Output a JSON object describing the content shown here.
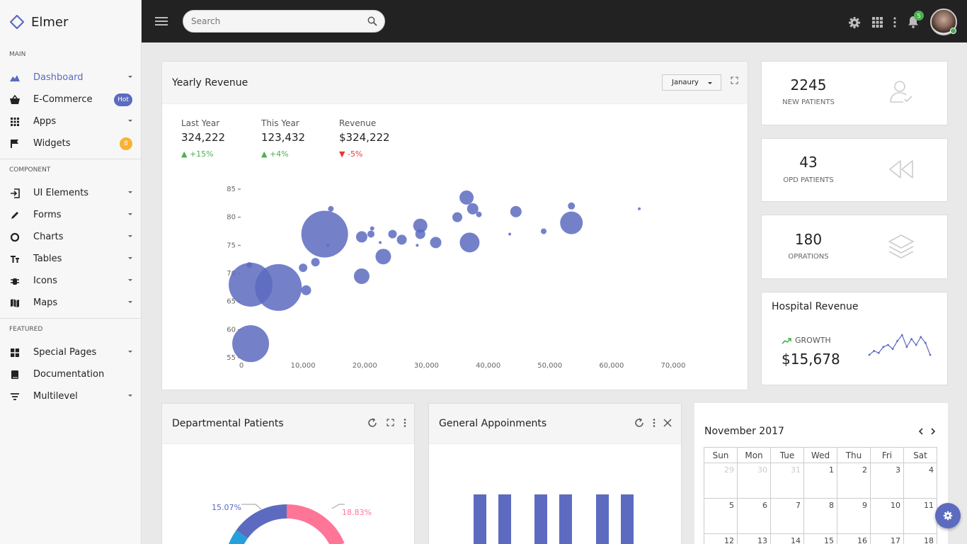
{
  "app": {
    "name": "Elmer"
  },
  "sidebar": {
    "main_title": "MAIN",
    "main": [
      {
        "label": "Dashboard"
      },
      {
        "label": "E-Commerce",
        "badge": "Hot"
      },
      {
        "label": "Apps"
      },
      {
        "label": "Widgets",
        "badge": "8"
      }
    ],
    "component_title": "COMPONENT",
    "component": [
      {
        "label": "UI Elements"
      },
      {
        "label": "Forms"
      },
      {
        "label": "Charts"
      },
      {
        "label": "Tables"
      },
      {
        "label": "Icons"
      },
      {
        "label": "Maps"
      }
    ],
    "featured_title": "FEATURED",
    "featured": [
      {
        "label": "Special Pages"
      },
      {
        "label": "Documentation"
      },
      {
        "label": "Multilevel"
      }
    ]
  },
  "topbar": {
    "search_placeholder": "Search",
    "notification_count": "5"
  },
  "revenue": {
    "title": "Yearly Revenue",
    "month": "Janaury",
    "stats": [
      {
        "label": "Last Year",
        "value": "324,222",
        "delta": "+15%",
        "dir": "up"
      },
      {
        "label": "This Year",
        "value": "123,432",
        "delta": "+4%",
        "dir": "up"
      },
      {
        "label": "Revenue",
        "value": "$324,222",
        "delta": "-5%",
        "dir": "down"
      }
    ]
  },
  "chart_data": [
    {
      "type": "scatter",
      "x_ticks": [
        "0",
        "10,000",
        "20,000",
        "30,000",
        "40,000",
        "50,000",
        "60,000",
        "70,000"
      ],
      "y_ticks": [
        "55",
        "60",
        "65",
        "70",
        "75",
        "80",
        "85"
      ],
      "xlim": [
        0,
        70000
      ],
      "ylim": [
        55,
        85
      ],
      "color": "#5c6bc0",
      "points": [
        {
          "x": 1500,
          "y": 57.5,
          "size": 26
        },
        {
          "x": 1500,
          "y": 68,
          "size": 31
        },
        {
          "x": 6000,
          "y": 67.5,
          "size": 33
        },
        {
          "x": 13500,
          "y": 77,
          "size": 33
        },
        {
          "x": 1300,
          "y": 71.5,
          "size": 4
        },
        {
          "x": 10000,
          "y": 71,
          "size": 6
        },
        {
          "x": 12000,
          "y": 72,
          "size": 6
        },
        {
          "x": 10500,
          "y": 67,
          "size": 7
        },
        {
          "x": 14500,
          "y": 81.5,
          "size": 4
        },
        {
          "x": 14000,
          "y": 75,
          "size": 2
        },
        {
          "x": 19500,
          "y": 69.5,
          "size": 11
        },
        {
          "x": 19500,
          "y": 76.5,
          "size": 8
        },
        {
          "x": 21000,
          "y": 77,
          "size": 5
        },
        {
          "x": 21200,
          "y": 78,
          "size": 3
        },
        {
          "x": 23000,
          "y": 73,
          "size": 11
        },
        {
          "x": 24500,
          "y": 77,
          "size": 6
        },
        {
          "x": 26000,
          "y": 76,
          "size": 7
        },
        {
          "x": 22500,
          "y": 75.5,
          "size": 2
        },
        {
          "x": 28500,
          "y": 75,
          "size": 2
        },
        {
          "x": 29000,
          "y": 77,
          "size": 7
        },
        {
          "x": 29000,
          "y": 78.5,
          "size": 10
        },
        {
          "x": 31500,
          "y": 75.5,
          "size": 8
        },
        {
          "x": 35000,
          "y": 80,
          "size": 7
        },
        {
          "x": 36500,
          "y": 83.5,
          "size": 10
        },
        {
          "x": 37000,
          "y": 75.5,
          "size": 14
        },
        {
          "x": 37500,
          "y": 81.5,
          "size": 8
        },
        {
          "x": 38500,
          "y": 80.5,
          "size": 4
        },
        {
          "x": 43500,
          "y": 77,
          "size": 2
        },
        {
          "x": 44500,
          "y": 81,
          "size": 8
        },
        {
          "x": 49000,
          "y": 77.5,
          "size": 4
        },
        {
          "x": 53500,
          "y": 79,
          "size": 16
        },
        {
          "x": 53500,
          "y": 82,
          "size": 5
        },
        {
          "x": 64500,
          "y": 81.5,
          "size": 2
        }
      ]
    },
    {
      "type": "line",
      "values": [
        52,
        54,
        53,
        56,
        57,
        55,
        59,
        62,
        56,
        60,
        57,
        61,
        58,
        52
      ]
    },
    {
      "type": "pie",
      "labels": [
        "15.07%",
        "18.83%"
      ],
      "values": [
        15.07,
        18.83
      ],
      "colors": [
        "#5c6bc0",
        "#ff7597"
      ]
    },
    {
      "type": "bar",
      "values": [
        1,
        1,
        1,
        1,
        1,
        1
      ],
      "color": "#5c6bc0"
    }
  ],
  "kpis": [
    {
      "value": "2245",
      "label": "NEW PATIENTS",
      "icon": "user-check-icon"
    },
    {
      "value": "43",
      "label": "OPD PATIENTS",
      "icon": "rewind-icon"
    },
    {
      "value": "180",
      "label": "OPRATIONS",
      "icon": "layers-icon"
    }
  ],
  "hospital": {
    "title": "Hospital Revenue",
    "growth_label": "GROWTH",
    "value": "$15,678"
  },
  "dept": {
    "title": "Departmental Patients"
  },
  "appointments": {
    "title": "General Appoinments"
  },
  "calendar": {
    "month": "November 2017",
    "days": [
      "Sun",
      "Mon",
      "Tue",
      "Wed",
      "Thu",
      "Fri",
      "Sat"
    ],
    "rows": [
      [
        {
          "d": "29",
          "m": true
        },
        {
          "d": "30",
          "m": true
        },
        {
          "d": "31",
          "m": true
        },
        {
          "d": "1"
        },
        {
          "d": "2"
        },
        {
          "d": "3"
        },
        {
          "d": "4"
        }
      ],
      [
        {
          "d": "5"
        },
        {
          "d": "6"
        },
        {
          "d": "7"
        },
        {
          "d": "8"
        },
        {
          "d": "9"
        },
        {
          "d": "10"
        },
        {
          "d": "11"
        }
      ],
      [
        {
          "d": "12"
        },
        {
          "d": "13"
        },
        {
          "d": "14"
        },
        {
          "d": "15"
        },
        {
          "d": "16"
        },
        {
          "d": "17"
        },
        {
          "d": "18"
        }
      ]
    ]
  },
  "colors": {
    "accent": "#5c6bc0",
    "topbar": "#222222",
    "up": "#4caf50",
    "down": "#e53935",
    "hot": "#5c6bc0",
    "warn": "#f9b233"
  }
}
